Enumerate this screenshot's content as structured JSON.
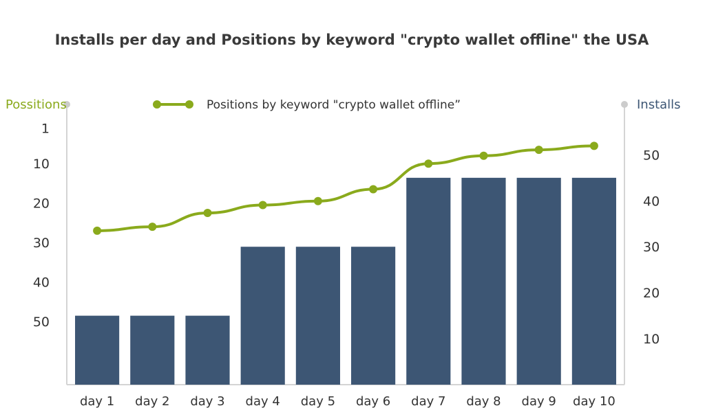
{
  "chart_data": {
    "type": "bar",
    "title": "Installs per day and Positions by keyword \"crypto wallet offline\" the USA",
    "categories": [
      "day 1",
      "day 2",
      "day 3",
      "day 4",
      "day 5",
      "day 6",
      "day 7",
      "day 8",
      "day 9",
      "day 10"
    ],
    "series": [
      {
        "name": "Installs",
        "type": "bar",
        "axis": "right",
        "color": "#3d5674",
        "values": [
          15,
          15,
          15,
          30,
          30,
          30,
          45,
          45,
          45,
          45
        ]
      },
      {
        "name": "Positions by keyword \"crypto wallet offline”",
        "type": "line",
        "axis": "left",
        "color": "#8aaa1c",
        "values": [
          27,
          26,
          22.5,
          20.5,
          19.5,
          16.5,
          10,
          8,
          6.5,
          5.5
        ]
      }
    ],
    "left_axis": {
      "label": "Possitions",
      "ticks": [
        1,
        10,
        20,
        30,
        40,
        50
      ],
      "range": [
        -5,
        66
      ],
      "inverted": true,
      "label_color": "#8aaa1c"
    },
    "right_axis": {
      "label": "Installs",
      "ticks": [
        10,
        20,
        30,
        40,
        50
      ],
      "range": [
        0,
        65
      ],
      "label_color": "#3d5674"
    },
    "legend": {
      "position": "top-center",
      "shown": [
        "Positions by keyword \"crypto wallet offline”"
      ]
    },
    "grid": false
  }
}
